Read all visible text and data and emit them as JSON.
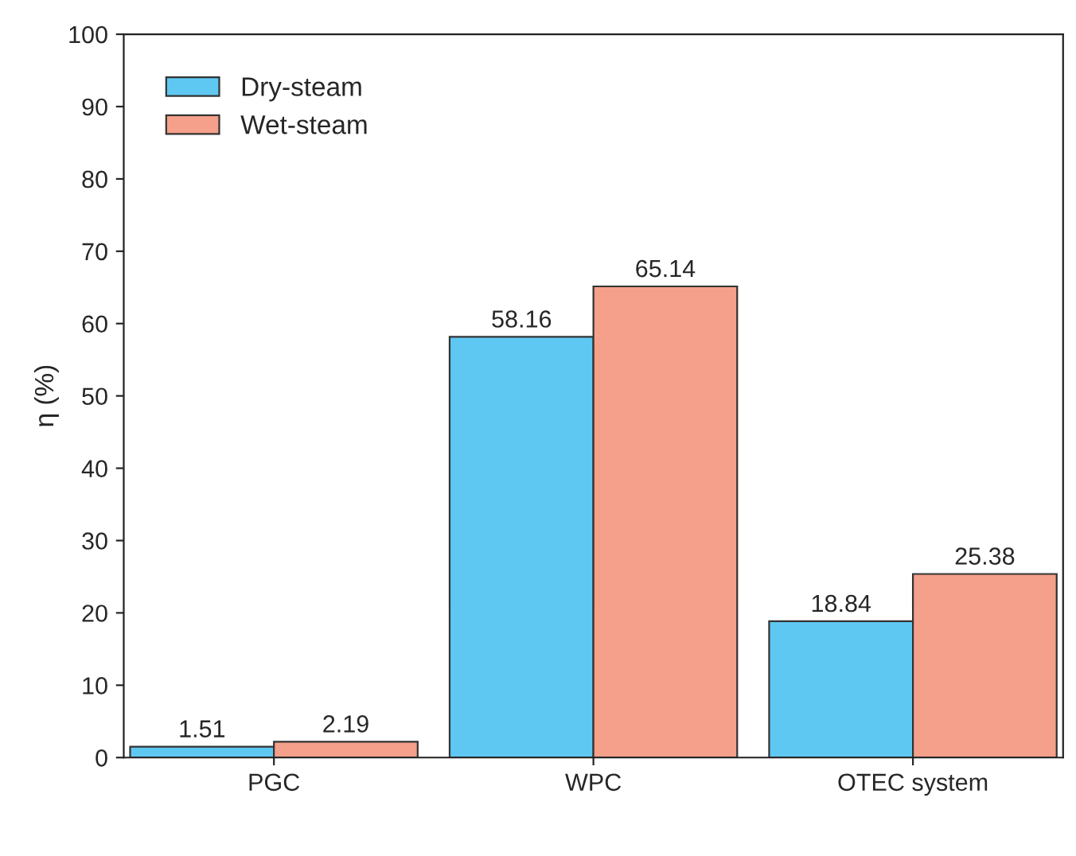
{
  "chart_data": {
    "type": "bar",
    "ylabel": "η (%)",
    "categories": [
      "PGC",
      "WPC",
      "OTEC system"
    ],
    "series": [
      {
        "name": "Dry-steam",
        "color": "#5ec8f2",
        "values": [
          1.51,
          58.16,
          18.84
        ]
      },
      {
        "name": "Wet-steam",
        "color": "#f4a08a",
        "values": [
          2.19,
          65.14,
          25.38
        ]
      }
    ],
    "ylim": [
      0,
      100
    ],
    "yticks": [
      0,
      10,
      20,
      30,
      40,
      50,
      60,
      70,
      80,
      90,
      100
    ],
    "data_labels": true,
    "legend": "top left",
    "grid": false
  }
}
